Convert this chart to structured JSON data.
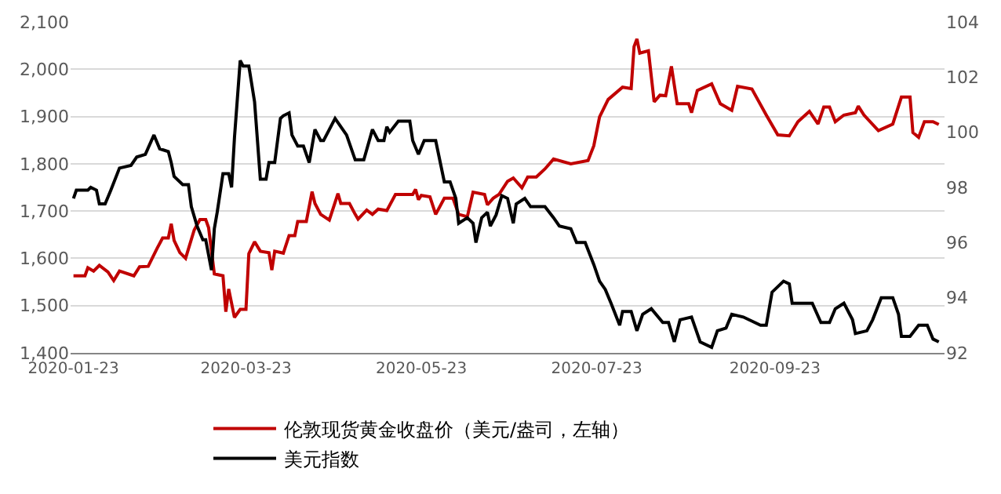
{
  "chart_data": {
    "type": "line",
    "xlim": [
      "2020-01-22",
      "2020-11-21"
    ],
    "xticks": [
      {
        "value": "2020-01-23",
        "label": "2020-01-23"
      },
      {
        "value": "2020-03-23",
        "label": "2020-03-23"
      },
      {
        "value": "2020-05-23",
        "label": "2020-05-23"
      },
      {
        "value": "2020-07-23",
        "label": "2020-07-23"
      },
      {
        "value": "2020-09-23",
        "label": "2020-09-23"
      }
    ],
    "ylim": [
      1400,
      2100
    ],
    "yticks": [
      {
        "value": 1400,
        "label": "1,400"
      },
      {
        "value": 1500,
        "label": "1,500"
      },
      {
        "value": 1600,
        "label": "1,600"
      },
      {
        "value": 1700,
        "label": "1,700"
      },
      {
        "value": 1800,
        "label": "1,800"
      },
      {
        "value": 1900,
        "label": "1,900"
      },
      {
        "value": 2000,
        "label": "2,000"
      },
      {
        "value": 2100,
        "label": "2,100"
      }
    ],
    "y2lim": [
      92,
      104
    ],
    "y2ticks": [
      92,
      94,
      96,
      98,
      100,
      102,
      104
    ],
    "grid": "y",
    "legend": "bottom",
    "marker": "none",
    "line_style": "solid",
    "series": [
      {
        "name": "伦敦现货黄金收盘价（美元/盎司，左轴）",
        "color": "#c00000",
        "x": [
          "2020-01-23",
          "2020-01-27",
          "2020-01-28",
          "2020-01-30",
          "2020-02-01",
          "2020-02-04",
          "2020-02-06",
          "2020-02-08",
          "2020-02-13",
          "2020-02-15",
          "2020-02-18",
          "2020-02-21",
          "2020-02-23",
          "2020-02-25",
          "2020-02-26",
          "2020-02-27",
          "2020-02-29",
          "2020-03-02",
          "2020-03-05",
          "2020-03-07",
          "2020-03-09",
          "2020-03-10",
          "2020-03-12",
          "2020-03-15",
          "2020-03-16",
          "2020-03-17",
          "2020-03-19",
          "2020-03-21",
          "2020-03-23",
          "2020-03-24",
          "2020-03-26",
          "2020-03-28",
          "2020-03-31",
          "2020-04-01",
          "2020-04-02",
          "2020-04-05",
          "2020-04-07",
          "2020-04-09",
          "2020-04-10",
          "2020-04-13",
          "2020-04-15",
          "2020-04-16",
          "2020-04-18",
          "2020-04-21",
          "2020-04-24",
          "2020-04-25",
          "2020-04-28",
          "2020-04-30",
          "2020-05-01",
          "2020-05-04",
          "2020-05-06",
          "2020-05-08",
          "2020-05-11",
          "2020-05-14",
          "2020-05-20",
          "2020-05-21",
          "2020-05-22",
          "2020-05-23",
          "2020-05-26",
          "2020-05-28",
          "2020-05-31",
          "2020-06-03",
          "2020-06-05",
          "2020-06-08",
          "2020-06-10",
          "2020-06-14",
          "2020-06-15",
          "2020-06-17",
          "2020-06-19",
          "2020-06-22",
          "2020-06-24",
          "2020-06-27",
          "2020-06-29",
          "2020-07-02",
          "2020-07-05",
          "2020-07-08",
          "2020-07-14",
          "2020-07-20",
          "2020-07-22",
          "2020-07-24",
          "2020-07-27",
          "2020-08-01",
          "2020-08-04",
          "2020-08-05",
          "2020-08-06",
          "2020-08-07",
          "2020-08-10",
          "2020-08-12",
          "2020-08-14",
          "2020-08-16",
          "2020-08-18",
          "2020-08-20",
          "2020-08-24",
          "2020-08-25",
          "2020-08-27",
          "2020-09-01",
          "2020-09-04",
          "2020-09-08",
          "2020-09-10",
          "2020-09-15",
          "2020-09-20",
          "2020-09-24",
          "2020-09-28",
          "2020-10-01",
          "2020-10-05",
          "2020-10-08",
          "2020-10-10",
          "2020-10-12",
          "2020-10-14",
          "2020-10-17",
          "2020-10-21",
          "2020-10-22",
          "2020-10-24",
          "2020-10-29",
          "2020-11-03",
          "2020-11-06",
          "2020-11-09",
          "2020-11-10",
          "2020-11-12",
          "2020-11-14",
          "2020-11-17",
          "2020-11-19"
        ],
        "values": [
          1563,
          1563,
          1580,
          1573,
          1585,
          1571,
          1553,
          1573,
          1563,
          1582,
          1583,
          1620,
          1643,
          1643,
          1673,
          1638,
          1612,
          1600,
          1660,
          1682,
          1682,
          1665,
          1567,
          1563,
          1487,
          1535,
          1475,
          1492,
          1492,
          1610,
          1635,
          1615,
          1612,
          1575,
          1615,
          1611,
          1648,
          1648,
          1678,
          1678,
          1741,
          1716,
          1693,
          1681,
          1737,
          1716,
          1716,
          1693,
          1683,
          1702,
          1693,
          1704,
          1701,
          1735,
          1735,
          1746,
          1724,
          1733,
          1730,
          1693,
          1727,
          1727,
          1693,
          1688,
          1740,
          1735,
          1713,
          1727,
          1735,
          1763,
          1770,
          1749,
          1772,
          1772,
          1789,
          1810,
          1800,
          1807,
          1838,
          1899,
          1936,
          1962,
          1959,
          2048,
          2064,
          2034,
          2039,
          1931,
          1945,
          1944,
          2006,
          1927,
          1927,
          1908,
          1955,
          1969,
          1927,
          1913,
          1964,
          1958,
          1903,
          1861,
          1859,
          1889,
          1911,
          1884,
          1920,
          1920,
          1889,
          1903,
          1908,
          1922,
          1903,
          1870,
          1884,
          1941,
          1941,
          1866,
          1856,
          1889,
          1889,
          1883
        ]
      },
      {
        "name": "美元指数",
        "color": "#000000",
        "axis": "y2",
        "x": [
          "2020-01-23",
          "2020-01-24",
          "2020-01-28",
          "2020-01-29",
          "2020-01-31",
          "2020-02-01",
          "2020-02-03",
          "2020-02-05",
          "2020-02-08",
          "2020-02-12",
          "2020-02-14",
          "2020-02-17",
          "2020-02-20",
          "2020-02-22",
          "2020-02-25",
          "2020-02-26",
          "2020-02-27",
          "2020-03-01",
          "2020-03-03",
          "2020-03-04",
          "2020-03-06",
          "2020-03-08",
          "2020-03-09",
          "2020-03-11",
          "2020-03-12",
          "2020-03-13",
          "2020-03-15",
          "2020-03-17",
          "2020-03-18",
          "2020-03-19",
          "2020-03-21",
          "2020-03-22",
          "2020-03-24",
          "2020-03-26",
          "2020-03-28",
          "2020-03-30",
          "2020-03-31",
          "2020-04-02",
          "2020-04-04",
          "2020-04-05",
          "2020-04-07",
          "2020-04-08",
          "2020-04-10",
          "2020-04-12",
          "2020-04-14",
          "2020-04-16",
          "2020-04-18",
          "2020-04-19",
          "2020-04-22",
          "2020-04-23",
          "2020-04-25",
          "2020-04-27",
          "2020-04-30",
          "2020-05-03",
          "2020-05-06",
          "2020-05-08",
          "2020-05-10",
          "2020-05-11",
          "2020-05-12",
          "2020-05-15",
          "2020-05-19",
          "2020-05-20",
          "2020-05-22",
          "2020-05-24",
          "2020-05-28",
          "2020-05-31",
          "2020-06-02",
          "2020-06-04",
          "2020-06-05",
          "2020-06-08",
          "2020-06-10",
          "2020-06-11",
          "2020-06-13",
          "2020-06-15",
          "2020-06-16",
          "2020-06-18",
          "2020-06-20",
          "2020-06-22",
          "2020-06-24",
          "2020-06-25",
          "2020-06-28",
          "2020-06-30",
          "2020-07-05",
          "2020-07-08",
          "2020-07-10",
          "2020-07-14",
          "2020-07-16",
          "2020-07-19",
          "2020-07-22",
          "2020-07-24",
          "2020-07-26",
          "2020-07-28",
          "2020-07-31",
          "2020-08-01",
          "2020-08-04",
          "2020-08-06",
          "2020-08-08",
          "2020-08-11",
          "2020-08-15",
          "2020-08-17",
          "2020-08-19",
          "2020-08-21",
          "2020-08-25",
          "2020-08-28",
          "2020-09-01",
          "2020-09-03",
          "2020-09-06",
          "2020-09-08",
          "2020-09-12",
          "2020-09-16",
          "2020-09-18",
          "2020-09-20",
          "2020-09-22",
          "2020-09-26",
          "2020-09-28",
          "2020-09-29",
          "2020-10-04",
          "2020-10-06",
          "2020-10-09",
          "2020-10-12",
          "2020-10-14",
          "2020-10-17",
          "2020-10-20",
          "2020-10-21",
          "2020-10-25",
          "2020-10-27",
          "2020-10-30",
          "2020-11-03",
          "2020-11-05",
          "2020-11-06",
          "2020-11-09",
          "2020-11-12",
          "2020-11-15",
          "2020-11-17",
          "2020-11-19"
        ],
        "values": [
          97.6,
          97.9,
          97.9,
          98.0,
          97.9,
          97.4,
          97.4,
          97.9,
          98.7,
          98.8,
          99.1,
          99.2,
          99.9,
          99.4,
          99.3,
          98.9,
          98.4,
          98.1,
          98.1,
          97.3,
          96.6,
          96.1,
          96.1,
          95.0,
          96.5,
          97.1,
          98.5,
          98.5,
          98.0,
          99.8,
          102.6,
          102.4,
          102.4,
          101.1,
          98.3,
          98.3,
          98.9,
          98.9,
          100.5,
          100.6,
          100.7,
          99.9,
          99.5,
          99.5,
          98.9,
          100.1,
          99.7,
          99.7,
          100.3,
          100.5,
          100.2,
          99.9,
          99.0,
          99.0,
          100.1,
          99.7,
          99.7,
          100.2,
          100.0,
          100.4,
          100.4,
          99.7,
          99.2,
          99.7,
          99.7,
          98.2,
          98.2,
          97.6,
          96.7,
          96.9,
          96.7,
          96.0,
          96.9,
          97.1,
          96.6,
          97.0,
          97.7,
          97.6,
          96.7,
          97.4,
          97.6,
          97.3,
          97.3,
          96.9,
          96.6,
          96.5,
          96.0,
          96.0,
          95.2,
          94.6,
          94.3,
          93.8,
          93.0,
          93.5,
          93.5,
          92.8,
          93.4,
          93.6,
          93.1,
          93.1,
          92.4,
          93.2,
          93.3,
          92.4,
          92.2,
          92.8,
          92.9,
          93.4,
          93.3,
          93.1,
          93.0,
          93.0,
          94.2,
          94.6,
          94.5,
          93.8,
          93.8,
          93.8,
          93.1,
          93.1,
          93.6,
          93.8,
          93.2,
          92.7,
          92.8,
          93.2,
          94.0,
          94.0,
          93.4,
          92.6,
          92.6,
          93.0,
          93.0,
          92.5,
          92.4
        ]
      }
    ]
  }
}
